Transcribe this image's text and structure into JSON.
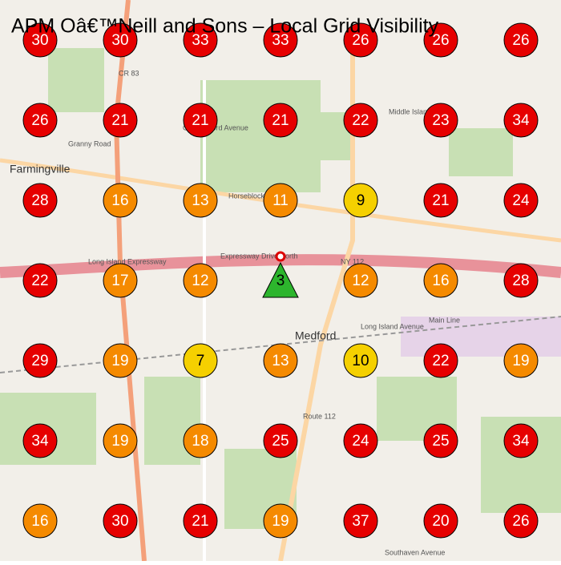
{
  "title": "APM Oâ€™Neill and Sons – Local Grid Visibility",
  "grid": {
    "rows": [
      [
        30,
        30,
        33,
        33,
        26,
        26,
        26
      ],
      [
        26,
        21,
        21,
        21,
        22,
        23,
        34
      ],
      [
        28,
        16,
        13,
        11,
        9,
        21,
        24
      ],
      [
        22,
        17,
        12,
        null,
        12,
        16,
        28
      ],
      [
        29,
        19,
        7,
        13,
        10,
        22,
        19
      ],
      [
        34,
        19,
        18,
        25,
        24,
        25,
        34
      ],
      [
        16,
        30,
        21,
        19,
        37,
        20,
        26
      ]
    ]
  },
  "pin_rank": 3,
  "map_labels": [
    "Farmingville",
    "Medford",
    "Long Island Expressway",
    "Expressway Drive North",
    "Main Line",
    "Long Island Avenue",
    "Route 112",
    "Horseblock Road",
    "Granny Road",
    "Middle Island Road",
    "Old Medford Avenue",
    "Southaven Avenue",
    "CR 83",
    "NY 112"
  ]
}
